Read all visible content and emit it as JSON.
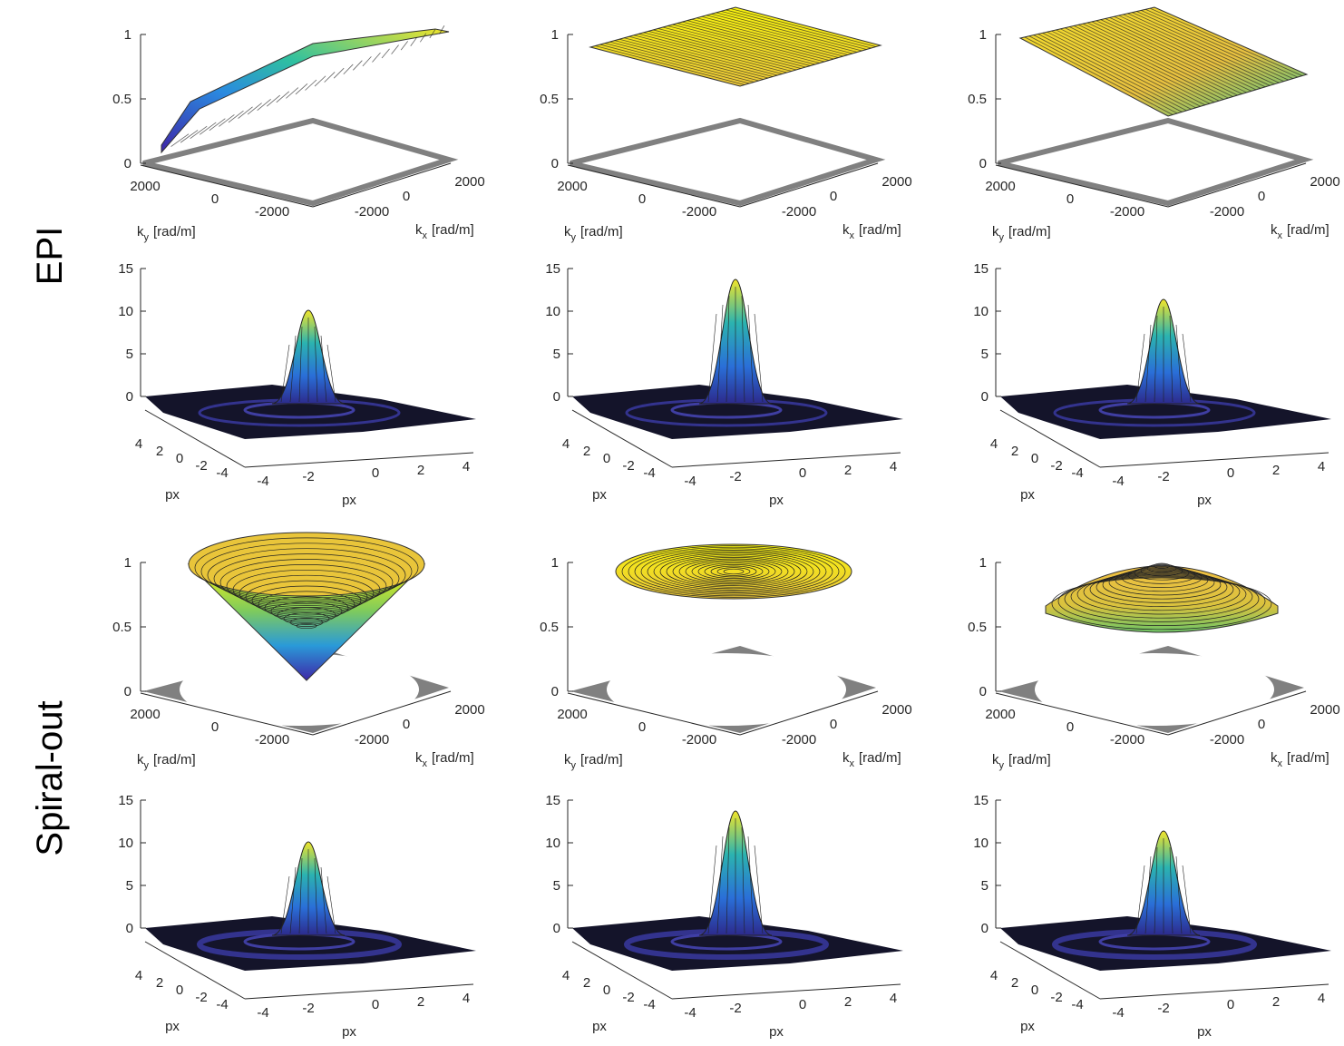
{
  "row_labels": [
    "EPI",
    "Spiral-out"
  ],
  "kspace_axes": {
    "zticks": [
      "1",
      "0.5",
      "0"
    ],
    "yticks": [
      "2000",
      "0",
      "-2000"
    ],
    "xticks": [
      "-2000",
      "0",
      "2000"
    ],
    "ylabel": {
      "symbol": "k",
      "subscript": "y",
      "unit": "[rad/m]"
    },
    "xlabel": {
      "symbol": "k",
      "subscript": "x",
      "unit": "[rad/m]"
    }
  },
  "psf_axes": {
    "zticks": [
      "15",
      "10",
      "5",
      "0"
    ],
    "yticks": [
      "4",
      "2",
      "0",
      "-2",
      "-4"
    ],
    "xticks": [
      "-4",
      "-2",
      "0",
      "2",
      "4"
    ],
    "ylabel": "px",
    "xlabel": "px"
  }
}
